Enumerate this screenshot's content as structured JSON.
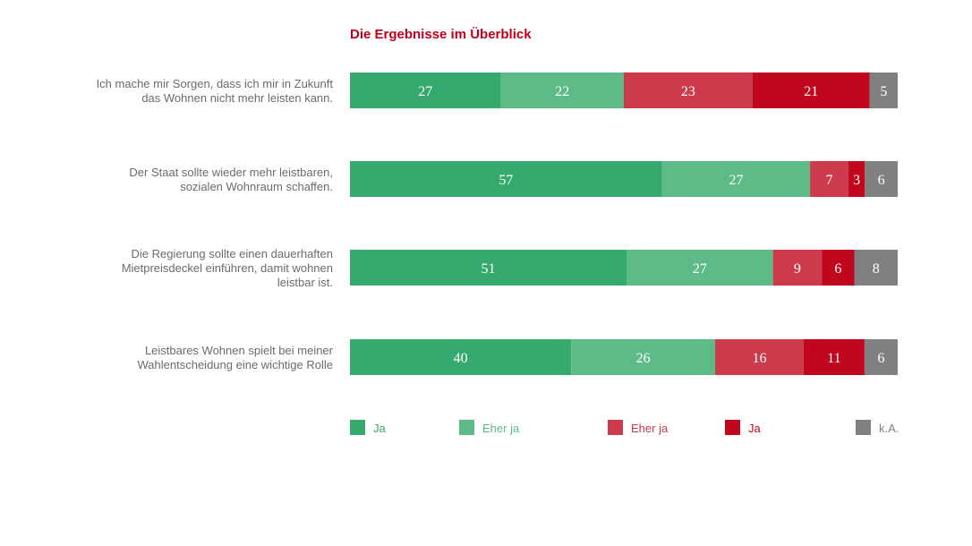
{
  "chart_data": {
    "type": "bar",
    "orientation": "horizontal",
    "stacked": true,
    "title": "Die Ergebnisse im Überblick",
    "categories": [
      [
        "Ich mache mir Sorgen, dass ich mir in Zukunft",
        "das Wohnen nicht mehr leisten kann."
      ],
      [
        "Der Staat sollte wieder mehr leistbaren,",
        "sozialen Wohnraum schaffen."
      ],
      [
        "Die Regierung sollte einen dauerhaften",
        "Mietpreisdeckel einführen, damit wohnen",
        "leistbar ist."
      ],
      [
        "Leistbares Wohnen spielt bei meiner",
        "Wahlentscheidung eine wichtige  Rolle"
      ]
    ],
    "series": [
      {
        "name": "Ja",
        "color": "#36a96e",
        "values": [
          27,
          57,
          51,
          40
        ]
      },
      {
        "name": "Eher ja",
        "color": "#5dbb88",
        "values": [
          22,
          27,
          27,
          26
        ]
      },
      {
        "name": "Eher ja",
        "color": "#cc3a4b",
        "values": [
          23,
          7,
          9,
          16
        ]
      },
      {
        "name": "Ja",
        "color": "#c0071e",
        "values": [
          21,
          3,
          6,
          11
        ]
      },
      {
        "name": "k.A.",
        "color": "#808080",
        "values": [
          5,
          6,
          8,
          6
        ]
      }
    ],
    "xlim": [
      0,
      100
    ],
    "grid": false,
    "legend_position": "bottom",
    "legend_text_colors": [
      "#36a96e",
      "#5dbb88",
      "#cc3a4b",
      "#c0071e",
      "#808080"
    ]
  }
}
